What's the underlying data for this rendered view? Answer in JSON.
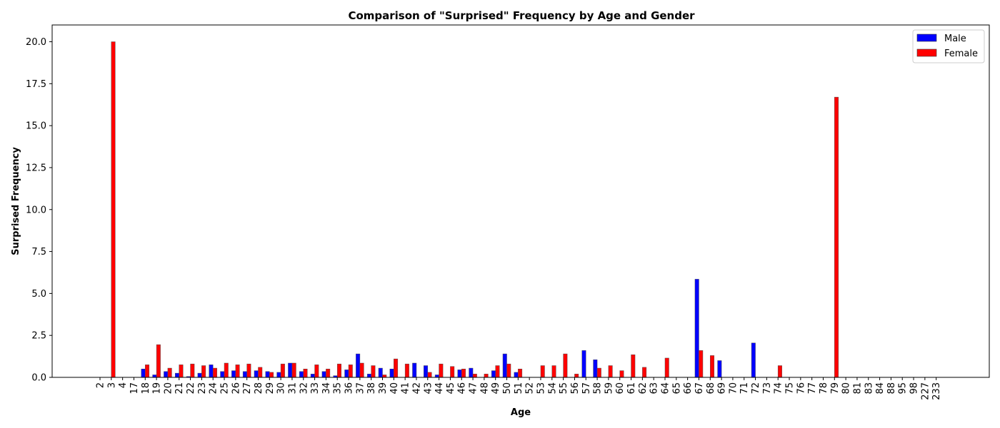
{
  "chart_data": {
    "type": "bar",
    "title": "Comparison of \"Surprised\" Frequency by Age and Gender",
    "xlabel": "Age",
    "ylabel": "Surprised Frequency",
    "ylim": [
      0,
      21
    ],
    "yticks": [
      0.0,
      2.5,
      5.0,
      7.5,
      10.0,
      12.5,
      15.0,
      17.5,
      20.0
    ],
    "ytick_labels": [
      "0.0",
      "2.5",
      "5.0",
      "7.5",
      "10.0",
      "12.5",
      "15.0",
      "17.5",
      "20.0"
    ],
    "grid": false,
    "legend_position": "top-right",
    "categories": [
      "2",
      "3",
      "4",
      "17",
      "18",
      "19",
      "20",
      "21",
      "22",
      "23",
      "24",
      "25",
      "26",
      "27",
      "28",
      "29",
      "30",
      "31",
      "32",
      "33",
      "34",
      "35",
      "36",
      "37",
      "38",
      "39",
      "40",
      "41",
      "42",
      "43",
      "44",
      "45",
      "46",
      "47",
      "48",
      "49",
      "50",
      "51",
      "52",
      "53",
      "54",
      "55",
      "56",
      "57",
      "58",
      "59",
      "60",
      "61",
      "62",
      "63",
      "64",
      "65",
      "66",
      "67",
      "68",
      "69",
      "70",
      "71",
      "72",
      "73",
      "74",
      "75",
      "76",
      "77",
      "78",
      "79",
      "80",
      "81",
      "83",
      "84",
      "88",
      "95",
      "98",
      "227",
      "233"
    ],
    "series": [
      {
        "name": "Male",
        "color": "#0000ff",
        "values": [
          0,
          0,
          0,
          0,
          0.5,
          0.15,
          0.35,
          0.25,
          0.05,
          0.25,
          0.75,
          0.35,
          0.4,
          0.35,
          0.4,
          0.35,
          0.3,
          0.85,
          0.35,
          0.2,
          0.35,
          0.1,
          0.45,
          1.4,
          0.2,
          0.55,
          0.5,
          0,
          0.85,
          0.7,
          0.15,
          0,
          0.45,
          0.55,
          0,
          0.4,
          1.4,
          0.3,
          0,
          0,
          0,
          0,
          0,
          1.6,
          1.05,
          0,
          0,
          0,
          0,
          0,
          0,
          0,
          0,
          5.85,
          0,
          1.0,
          0,
          0,
          2.05,
          0,
          0,
          0,
          0,
          0,
          0,
          0,
          0,
          0,
          0,
          0,
          0,
          0,
          0,
          0,
          0
        ]
      },
      {
        "name": "Female",
        "color": "#ff0000",
        "values": [
          0,
          20.0,
          0,
          0,
          0.75,
          1.95,
          0.55,
          0.75,
          0.8,
          0.7,
          0.55,
          0.85,
          0.75,
          0.8,
          0.6,
          0.3,
          0.8,
          0.85,
          0.5,
          0.75,
          0.5,
          0.8,
          0.75,
          0.85,
          0.7,
          0.15,
          1.1,
          0.8,
          0,
          0.3,
          0.8,
          0.65,
          0.5,
          0.2,
          0.2,
          0.7,
          0.8,
          0.5,
          0,
          0.7,
          0.7,
          1.4,
          0.2,
          0,
          0.55,
          0.7,
          0.4,
          1.35,
          0.6,
          0,
          1.15,
          0,
          0,
          1.6,
          1.3,
          0,
          0,
          0,
          0,
          0,
          0.7,
          0,
          0,
          0,
          0,
          16.7,
          0,
          0,
          0,
          0,
          0,
          0,
          0,
          0,
          0
        ]
      }
    ]
  }
}
